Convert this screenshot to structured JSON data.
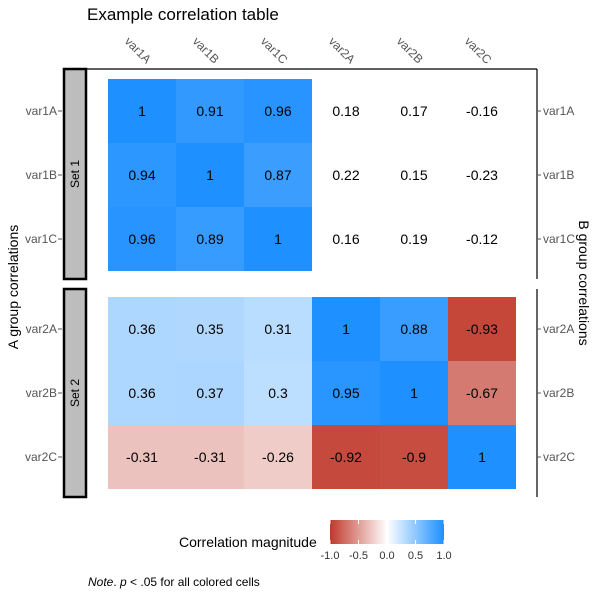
{
  "chart_data": {
    "type": "heatmap",
    "title": "Example correlation table",
    "columns": [
      "var1A",
      "var1B",
      "var1C",
      "var2A",
      "var2B",
      "var2C"
    ],
    "rows": [
      "var1A",
      "var1B",
      "var1C",
      "var2A",
      "var2B",
      "var2C"
    ],
    "row_groups": [
      {
        "label": "Set 1",
        "rows": [
          "var1A",
          "var1B",
          "var1C"
        ]
      },
      {
        "label": "Set 2",
        "rows": [
          "var2A",
          "var2B",
          "var2C"
        ]
      }
    ],
    "left_axis_title": "A group correlations",
    "right_axis_title": "B group correlations",
    "values": [
      [
        1,
        0.91,
        0.96,
        0.18,
        0.17,
        -0.16
      ],
      [
        0.94,
        1,
        0.87,
        0.22,
        0.15,
        -0.23
      ],
      [
        0.96,
        0.89,
        1,
        0.16,
        0.19,
        -0.12
      ],
      [
        0.36,
        0.35,
        0.31,
        1,
        0.88,
        -0.93
      ],
      [
        0.36,
        0.37,
        0.3,
        0.95,
        1,
        -0.67
      ],
      [
        -0.31,
        -0.31,
        -0.26,
        -0.92,
        -0.9,
        1
      ]
    ],
    "colored": [
      [
        true,
        true,
        true,
        false,
        false,
        false
      ],
      [
        true,
        true,
        true,
        false,
        false,
        false
      ],
      [
        true,
        true,
        true,
        false,
        false,
        false
      ],
      [
        true,
        true,
        true,
        true,
        true,
        true
      ],
      [
        true,
        true,
        true,
        true,
        true,
        true
      ],
      [
        true,
        true,
        true,
        true,
        true,
        true
      ]
    ],
    "color_scale": {
      "title": "Correlation magnitude",
      "range": [
        -1,
        1
      ],
      "ticks": [
        -1.0,
        -0.5,
        0.0,
        0.5,
        1.0
      ],
      "tick_labels": [
        "-1.0",
        "-0.5",
        "0.0",
        "0.5",
        "1.0"
      ],
      "low_color": "#c0392b",
      "mid_color": "#ffffff",
      "high_color": "#1e90ff"
    }
  },
  "note": {
    "italic": "Note",
    "middle": ". ",
    "p": "p",
    "rest": " < .05 for all colored cells"
  }
}
